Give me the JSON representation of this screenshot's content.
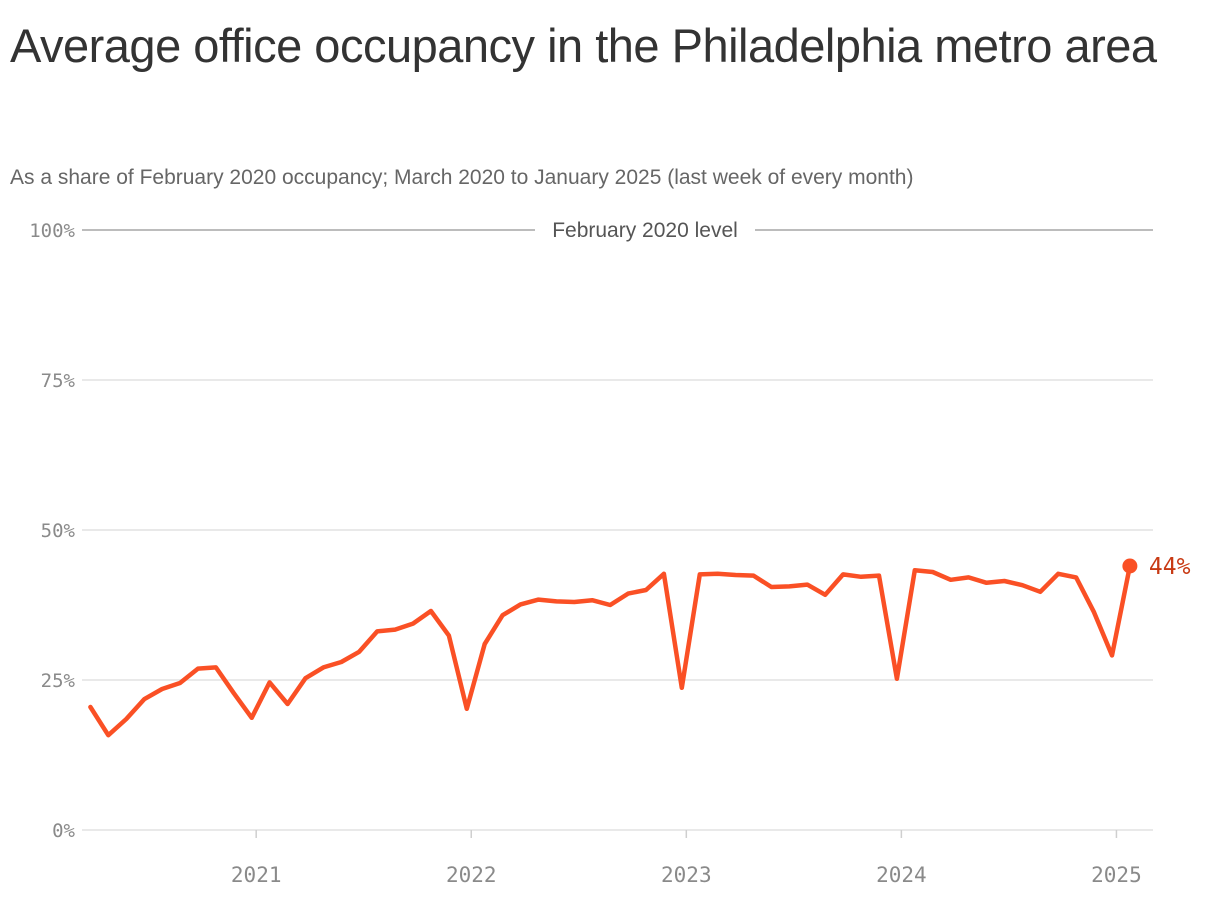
{
  "title": "Average office occupancy in the Philadelphia metro area",
  "subtitle": "As a share of February 2020 occupancy; March 2020 to January 2025 (last week of every month)",
  "chart_data": {
    "type": "line",
    "title": "Average office occupancy in the Philadelphia metro area",
    "subtitle": "As a share of February 2020 occupancy; March 2020 to January 2025 (last week of every month)",
    "xlabel": "",
    "ylabel": "",
    "ylim": [
      0,
      100
    ],
    "y_ticks": [
      0,
      25,
      50,
      75,
      100
    ],
    "y_tick_labels": [
      "0%",
      "25%",
      "50%",
      "75%",
      "100%"
    ],
    "x_ticks": [
      2021,
      2022,
      2023,
      2024,
      2025
    ],
    "x_tick_labels": [
      "2021",
      "2022",
      "2023",
      "2024",
      "2025"
    ],
    "xlim": [
      2020.19,
      2025.17
    ],
    "reference_line": {
      "value": 100,
      "label": "February 2020 level"
    },
    "end_label": "44%",
    "line_color": "#fa5025",
    "grid": true,
    "series": [
      {
        "x": [
          "2020-03",
          "2020-04",
          "2020-05",
          "2020-06",
          "2020-07",
          "2020-08",
          "2020-09",
          "2020-10",
          "2020-11",
          "2020-12",
          "2021-01",
          "2021-02",
          "2021-03",
          "2021-04",
          "2021-05",
          "2021-06",
          "2021-07",
          "2021-08",
          "2021-09",
          "2021-10",
          "2021-11",
          "2021-12",
          "2022-01",
          "2022-02",
          "2022-03",
          "2022-04",
          "2022-05",
          "2022-06",
          "2022-07",
          "2022-08",
          "2022-09",
          "2022-10",
          "2022-11",
          "2022-12",
          "2023-01",
          "2023-02",
          "2023-03",
          "2023-04",
          "2023-05",
          "2023-06",
          "2023-07",
          "2023-08",
          "2023-09",
          "2023-10",
          "2023-11",
          "2023-12",
          "2024-01",
          "2024-02",
          "2024-03",
          "2024-04",
          "2024-05",
          "2024-06",
          "2024-07",
          "2024-08",
          "2024-09",
          "2024-10",
          "2024-11",
          "2024-12",
          "2025-01"
        ],
        "values": [
          20.5,
          15.8,
          18.5,
          21.8,
          23.5,
          24.5,
          26.9,
          27.1,
          22.8,
          18.7,
          24.6,
          21.0,
          25.3,
          27.1,
          28.0,
          29.7,
          33.1,
          33.4,
          34.4,
          36.5,
          32.4,
          20.2,
          31.0,
          35.8,
          37.6,
          38.4,
          38.1,
          38.0,
          38.3,
          37.5,
          39.4,
          40.0,
          42.7,
          23.7,
          42.6,
          42.7,
          42.5,
          42.4,
          40.5,
          40.6,
          40.9,
          39.2,
          42.6,
          42.2,
          42.4,
          25.2,
          43.3,
          43.0,
          41.7,
          42.1,
          41.2,
          41.5,
          40.8,
          39.7,
          42.7,
          42.1,
          36.3,
          29.1,
          44.0
        ]
      }
    ]
  }
}
